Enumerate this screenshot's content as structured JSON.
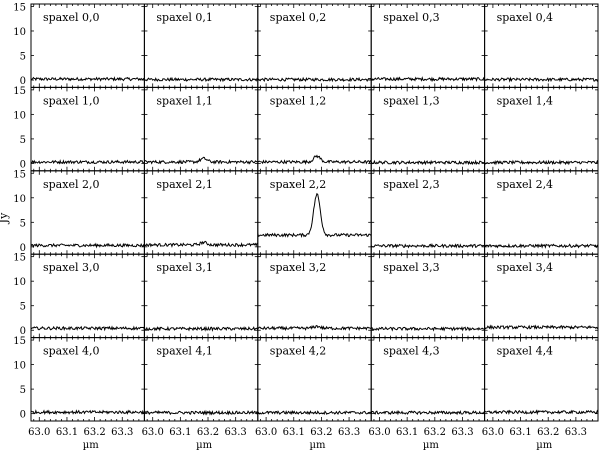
{
  "chart_data": {
    "type": "line",
    "ylabel": "Jy",
    "xlabel": "µm",
    "xlim": [
      62.97,
      63.38
    ],
    "ylim": [
      -1.5,
      15.5
    ],
    "yticks": [
      0,
      5,
      10,
      15
    ],
    "xticks": [
      63.0,
      63.1,
      63.2,
      63.3
    ],
    "xtick_labels": [
      "63.0",
      "63.1",
      "63.2",
      "63.3"
    ],
    "ytick_labels": [
      "0",
      "5",
      "10",
      "15"
    ],
    "grid_rows": 5,
    "grid_cols": 5,
    "panels": [
      {
        "label": "spaxel 0,0",
        "row": 0,
        "col": 0,
        "baseline": 0.2,
        "peak": 0.0
      },
      {
        "label": "spaxel 0,1",
        "row": 0,
        "col": 1,
        "baseline": 0.1,
        "peak": 0.0
      },
      {
        "label": "spaxel 0,2",
        "row": 0,
        "col": 2,
        "baseline": 0.1,
        "peak": 0.0
      },
      {
        "label": "spaxel 0,3",
        "row": 0,
        "col": 3,
        "baseline": 0.2,
        "peak": 0.0
      },
      {
        "label": "spaxel 0,4",
        "row": 0,
        "col": 4,
        "baseline": 0.1,
        "peak": 0.0
      },
      {
        "label": "spaxel 1,0",
        "row": 1,
        "col": 0,
        "baseline": 0.3,
        "peak": 0.0
      },
      {
        "label": "spaxel 1,1",
        "row": 1,
        "col": 1,
        "baseline": 0.3,
        "peak": 0.7
      },
      {
        "label": "spaxel 1,2",
        "row": 1,
        "col": 2,
        "baseline": 0.3,
        "peak": 1.2
      },
      {
        "label": "spaxel 1,3",
        "row": 1,
        "col": 3,
        "baseline": 0.2,
        "peak": 0.0
      },
      {
        "label": "spaxel 1,4",
        "row": 1,
        "col": 4,
        "baseline": 0.2,
        "peak": 0.0
      },
      {
        "label": "spaxel 2,0",
        "row": 2,
        "col": 0,
        "baseline": 0.3,
        "peak": 0.0
      },
      {
        "label": "spaxel 2,1",
        "row": 2,
        "col": 1,
        "baseline": 0.4,
        "peak": 0.5
      },
      {
        "label": "spaxel 2,2",
        "row": 2,
        "col": 2,
        "baseline": 2.4,
        "peak": 8.3
      },
      {
        "label": "spaxel 2,3",
        "row": 2,
        "col": 3,
        "baseline": 0.2,
        "peak": 0.0
      },
      {
        "label": "spaxel 2,4",
        "row": 2,
        "col": 4,
        "baseline": 0.2,
        "peak": 0.0
      },
      {
        "label": "spaxel 3,0",
        "row": 3,
        "col": 0,
        "baseline": 0.4,
        "peak": 0.0
      },
      {
        "label": "spaxel 3,1",
        "row": 3,
        "col": 1,
        "baseline": 0.3,
        "peak": 0.0
      },
      {
        "label": "spaxel 3,2",
        "row": 3,
        "col": 2,
        "baseline": 0.4,
        "peak": 0.4
      },
      {
        "label": "spaxel 3,3",
        "row": 3,
        "col": 3,
        "baseline": 0.3,
        "peak": 0.0
      },
      {
        "label": "spaxel 3,4",
        "row": 3,
        "col": 4,
        "baseline": 0.6,
        "peak": 0.0
      },
      {
        "label": "spaxel 4,0",
        "row": 4,
        "col": 0,
        "baseline": 0.3,
        "peak": 0.0
      },
      {
        "label": "spaxel 4,1",
        "row": 4,
        "col": 1,
        "baseline": 0.2,
        "peak": 0.0
      },
      {
        "label": "spaxel 4,2",
        "row": 4,
        "col": 2,
        "baseline": 0.2,
        "peak": 0.0
      },
      {
        "label": "spaxel 4,3",
        "row": 4,
        "col": 3,
        "baseline": 0.2,
        "peak": 0.0
      },
      {
        "label": "spaxel 4,4",
        "row": 4,
        "col": 4,
        "baseline": 0.3,
        "peak": 0.0
      }
    ],
    "line_center": 63.184,
    "line_sigma": 0.012,
    "grid": false,
    "legend": "none"
  }
}
